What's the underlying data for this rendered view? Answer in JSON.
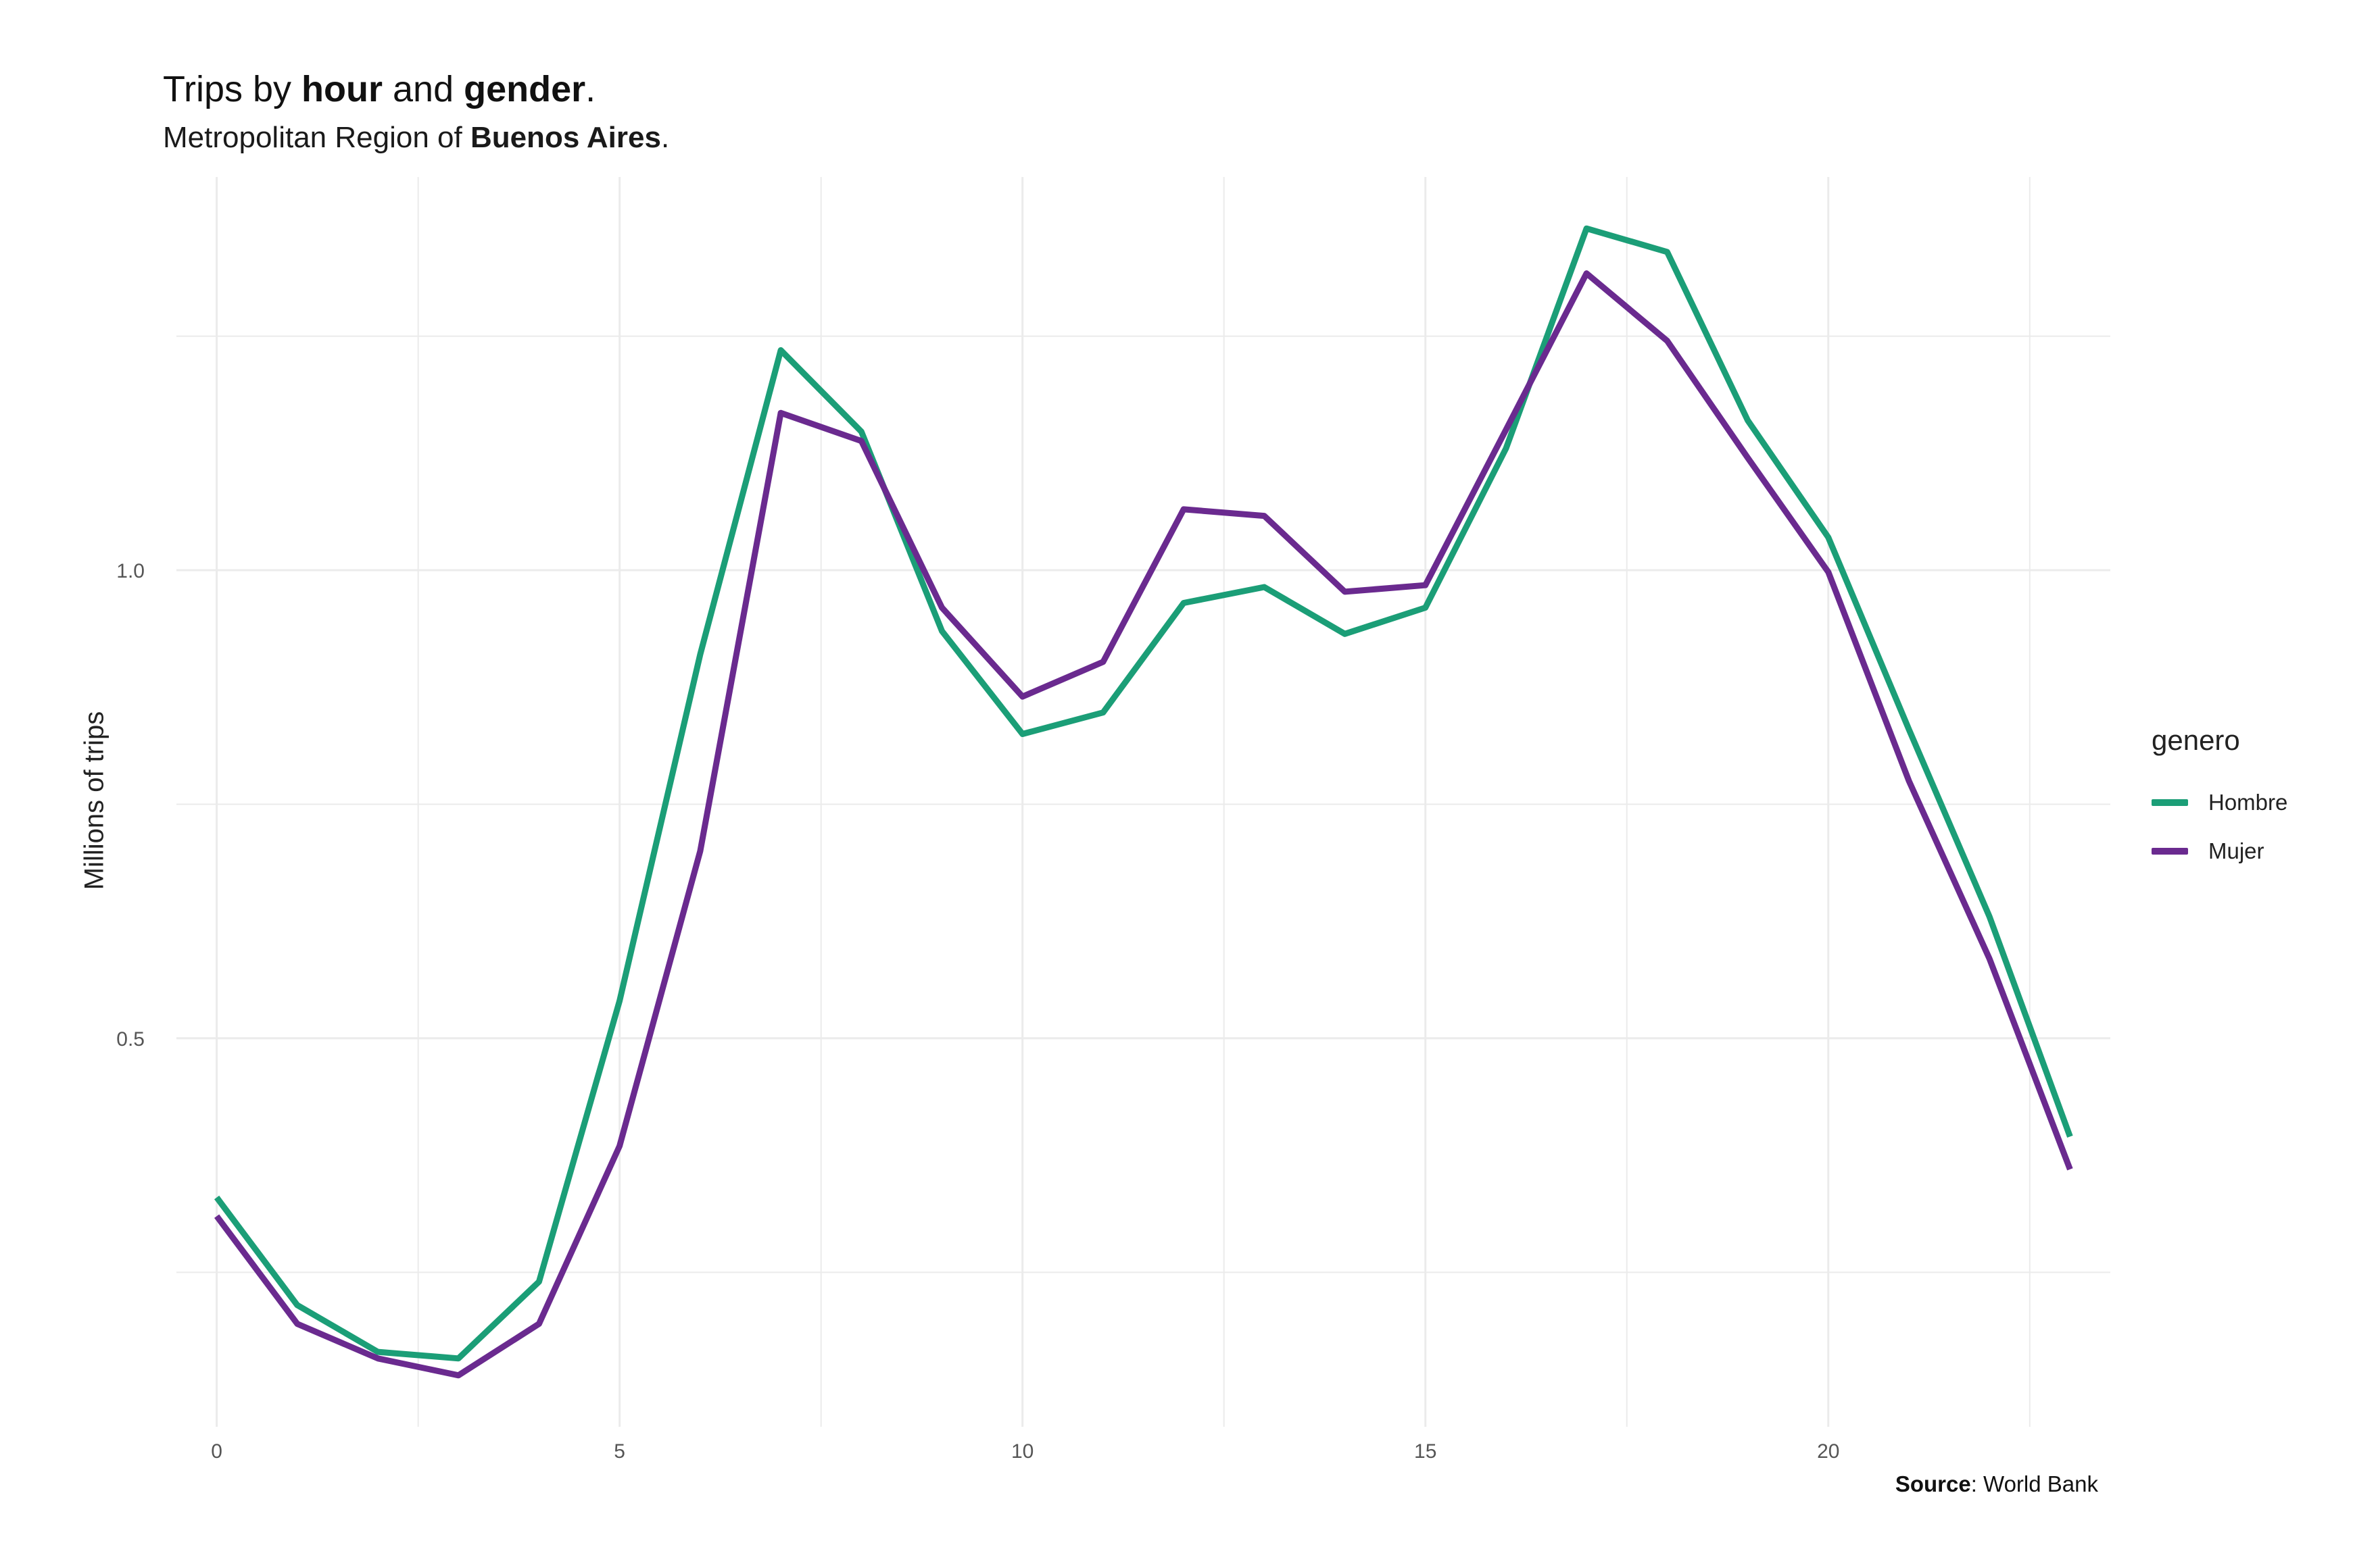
{
  "header": {
    "title_pre": "Trips by ",
    "title_b1": "hour",
    "title_mid": " and ",
    "title_b2": "gender",
    "title_post": ".",
    "subtitle_pre": "Metropolitan Region of ",
    "subtitle_b": "Buenos Aires",
    "subtitle_post": "."
  },
  "caption": {
    "bold": "Source",
    "rest": ": World Bank"
  },
  "legend": {
    "title": "genero",
    "items": [
      {
        "label": "Hombre",
        "color": "#1b9e77"
      },
      {
        "label": "Mujer",
        "color": "#6a2a8f"
      }
    ]
  },
  "chart_data": {
    "type": "line",
    "title": "Trips by hour and gender.",
    "subtitle": "Metropolitan Region of Buenos Aires.",
    "ylabel": "Millions of trips",
    "xlabel": "",
    "xlim": [
      -0.5,
      23.5
    ],
    "ylim": [
      0.085,
      1.42
    ],
    "x_ticks": [
      0,
      5,
      10,
      15,
      20
    ],
    "y_ticks": [
      0.5,
      1.0
    ],
    "y_tick_labels": [
      "0.5",
      "1.0"
    ],
    "grid": true,
    "legend_position": "right",
    "x": [
      0,
      1,
      2,
      3,
      4,
      5,
      6,
      7,
      8,
      9,
      10,
      11,
      12,
      13,
      14,
      15,
      16,
      17,
      18,
      19,
      20,
      21,
      22,
      23
    ],
    "series": [
      {
        "name": "Hombre",
        "color": "#1b9e77",
        "values": [
          0.33,
          0.215,
          0.165,
          0.158,
          0.24,
          0.54,
          0.91,
          1.235,
          1.148,
          0.935,
          0.825,
          0.848,
          0.965,
          0.982,
          0.932,
          0.96,
          1.13,
          1.365,
          1.34,
          1.16,
          1.035,
          0.83,
          0.63,
          0.395
        ]
      },
      {
        "name": "Mujer",
        "color": "#6a2a8f",
        "values": [
          0.31,
          0.195,
          0.158,
          0.14,
          0.195,
          0.385,
          0.7,
          1.168,
          1.138,
          0.96,
          0.865,
          0.902,
          1.065,
          1.058,
          0.977,
          0.984,
          1.15,
          1.317,
          1.245,
          1.12,
          0.998,
          0.775,
          0.585,
          0.36
        ]
      }
    ]
  }
}
